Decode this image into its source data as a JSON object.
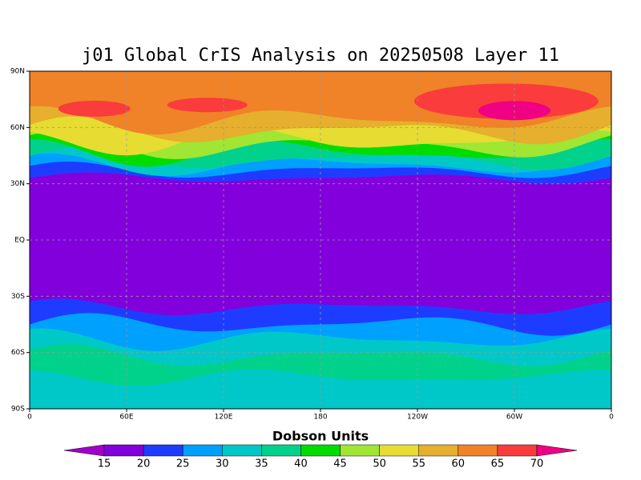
{
  "title": "j01 Global CrIS Analysis on 20250508 Layer 11",
  "map": {
    "xlim": [
      0,
      360
    ],
    "ylim": [
      -90,
      90
    ],
    "xticks": [
      0,
      {
        "value": 60,
        "label": "60E"
      },
      {
        "value": 120,
        "label": "120E"
      },
      180,
      {
        "value": 240,
        "label": "120W"
      },
      {
        "value": 300,
        "label": "60W"
      },
      {
        "value": 360,
        "label": "0"
      }
    ],
    "yticks": [
      {
        "value": -90,
        "label": "90S"
      },
      {
        "value": -60,
        "label": "60S"
      },
      {
        "value": -30,
        "label": "30S"
      },
      {
        "value": 0,
        "label": "EQ"
      },
      {
        "value": 30,
        "label": "30N"
      },
      {
        "value": 60,
        "label": "60N"
      },
      {
        "value": 90,
        "label": "90N"
      }
    ],
    "grid": true
  },
  "colorbar": {
    "label": "Dobson Units",
    "levels": [
      15,
      20,
      25,
      30,
      35,
      40,
      45,
      50,
      55,
      60,
      65,
      70
    ],
    "colors": [
      "#a000c8",
      "#8200dc",
      "#1e3cff",
      "#00a0ff",
      "#00c8c8",
      "#00d28c",
      "#00dc00",
      "#a0e632",
      "#e6dc32",
      "#e6af2d",
      "#f08228",
      "#fa3c3c",
      "#f00082"
    ]
  }
}
